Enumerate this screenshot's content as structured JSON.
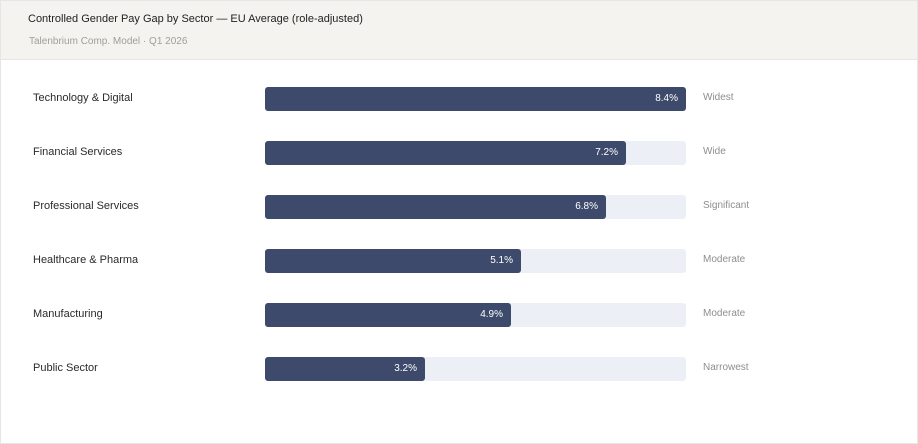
{
  "header": {
    "title": "Controlled Gender Pay Gap by Sector — EU Average (role-adjusted)",
    "subtitle": "Talenbrium Comp. Model · Q1 2026"
  },
  "chart_data": {
    "type": "bar",
    "orientation": "horizontal",
    "title": "Controlled Gender Pay Gap by Sector — EU Average (role-adjusted)",
    "subtitle": "Talenbrium Comp. Model · Q1 2026",
    "categories": [
      "Technology & Digital",
      "Financial Services",
      "Professional Services",
      "Healthcare & Pharma",
      "Manufacturing",
      "Public Sector"
    ],
    "values": [
      8.4,
      7.2,
      6.8,
      5.1,
      4.9,
      3.2
    ],
    "value_labels": [
      "8.4%",
      "7.2%",
      "6.8%",
      "5.1%",
      "4.9%",
      "3.2%"
    ],
    "tiers": [
      "Widest",
      "Wide",
      "Significant",
      "Moderate",
      "Moderate",
      "Narrowest"
    ],
    "unit": "%",
    "xlim": [
      0,
      8.4
    ],
    "grid": false,
    "colors": {
      "bar": "#3d4a6b",
      "track": "#eceff6"
    }
  }
}
